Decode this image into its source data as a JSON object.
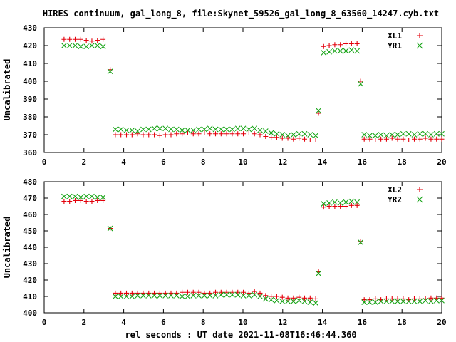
{
  "title": "HIRES continuum, gal_long_8, file:Skynet_59526_gal_long_8_63560_14247.cyb.txt",
  "xlabel": "rel seconds : UT date 2021-11-08T16:46:44.360",
  "colors": {
    "red": "#e3000b",
    "green": "#15a315"
  },
  "chart_data": [
    {
      "type": "scatter",
      "ylabel": "Uncalibrated",
      "xlim": [
        0,
        20
      ],
      "ylim": [
        360,
        430
      ],
      "xticks": [
        "0",
        "2",
        "4",
        "6",
        "8",
        "10",
        "12",
        "14",
        "16",
        "18",
        "20"
      ],
      "yticks": [
        "360",
        "370",
        "380",
        "390",
        "400",
        "410",
        "420",
        "430"
      ],
      "legend_position": "top-right",
      "series": [
        {
          "name": "XL1",
          "marker": "plus",
          "color": "#e3000b",
          "x": [
            1.0,
            1.28,
            1.56,
            1.84,
            2.12,
            2.4,
            2.68,
            2.96,
            3.32,
            3.58,
            3.86,
            4.14,
            4.42,
            4.7,
            4.98,
            5.26,
            5.54,
            5.82,
            6.1,
            6.38,
            6.66,
            6.94,
            7.22,
            7.5,
            7.78,
            8.06,
            8.34,
            8.62,
            8.9,
            9.18,
            9.46,
            9.74,
            10.02,
            10.3,
            10.58,
            10.86,
            11.14,
            11.42,
            11.7,
            11.98,
            12.26,
            12.54,
            12.82,
            13.1,
            13.38,
            13.66,
            13.8,
            14.06,
            14.34,
            14.62,
            14.9,
            15.18,
            15.46,
            15.74,
            15.92,
            16.1,
            16.38,
            16.66,
            16.94,
            17.22,
            17.5,
            17.78,
            18.06,
            18.34,
            18.62,
            18.9,
            19.18,
            19.46,
            19.74,
            20.0
          ],
          "y": [
            423.5,
            423.5,
            423.5,
            423.5,
            423.0,
            422.5,
            423.0,
            423.5,
            406.5,
            370.0,
            370.0,
            370.0,
            370.0,
            370.5,
            370.0,
            370.0,
            370.0,
            369.5,
            370.0,
            370.0,
            370.5,
            370.5,
            371.0,
            370.5,
            370.5,
            371.0,
            370.5,
            370.5,
            370.5,
            370.5,
            370.5,
            370.5,
            370.5,
            371.0,
            370.5,
            370.0,
            369.0,
            368.5,
            368.5,
            368.0,
            368.0,
            367.5,
            368.0,
            367.5,
            367.0,
            367.0,
            382.0,
            419.5,
            420.0,
            420.5,
            420.5,
            421.0,
            421.0,
            421.0,
            400.0,
            367.5,
            367.5,
            367.0,
            367.5,
            367.5,
            368.0,
            367.5,
            367.5,
            367.0,
            367.5,
            367.5,
            368.0,
            367.5,
            367.5,
            367.5
          ]
        },
        {
          "name": "YR1",
          "marker": "cross",
          "color": "#15a315",
          "x": [
            1.0,
            1.28,
            1.56,
            1.84,
            2.12,
            2.4,
            2.68,
            2.96,
            3.32,
            3.58,
            3.86,
            4.14,
            4.42,
            4.7,
            4.98,
            5.26,
            5.54,
            5.82,
            6.1,
            6.38,
            6.66,
            6.94,
            7.22,
            7.5,
            7.78,
            8.06,
            8.34,
            8.62,
            8.9,
            9.18,
            9.46,
            9.74,
            10.02,
            10.3,
            10.58,
            10.86,
            11.14,
            11.42,
            11.7,
            11.98,
            12.26,
            12.54,
            12.82,
            13.1,
            13.38,
            13.66,
            13.8,
            14.06,
            14.34,
            14.62,
            14.9,
            15.18,
            15.46,
            15.74,
            15.92,
            16.1,
            16.38,
            16.66,
            16.94,
            17.22,
            17.5,
            17.78,
            18.06,
            18.34,
            18.62,
            18.9,
            19.18,
            19.46,
            19.74,
            20.0
          ],
          "y": [
            420.0,
            420.0,
            420.0,
            419.5,
            419.5,
            420.0,
            420.0,
            419.5,
            405.5,
            373.0,
            373.0,
            372.5,
            372.5,
            372.0,
            373.0,
            373.0,
            373.5,
            373.5,
            373.5,
            373.0,
            373.0,
            372.5,
            372.5,
            372.5,
            373.0,
            373.0,
            373.5,
            373.0,
            373.0,
            373.0,
            373.0,
            373.5,
            373.5,
            373.0,
            373.5,
            372.5,
            372.0,
            371.0,
            370.5,
            370.0,
            369.5,
            370.0,
            370.5,
            370.5,
            370.0,
            369.5,
            383.5,
            416.0,
            416.5,
            417.0,
            417.0,
            417.0,
            417.5,
            417.0,
            398.5,
            370.0,
            369.5,
            369.5,
            370.0,
            369.5,
            370.0,
            370.0,
            370.5,
            370.5,
            370.0,
            370.5,
            370.5,
            370.0,
            370.5,
            370.5
          ]
        }
      ]
    },
    {
      "type": "scatter",
      "ylabel": "Uncalibrated",
      "xlim": [
        0,
        20
      ],
      "ylim": [
        400,
        480
      ],
      "xticks": [
        "0",
        "2",
        "4",
        "6",
        "8",
        "10",
        "12",
        "14",
        "16",
        "18",
        "20"
      ],
      "yticks": [
        "400",
        "410",
        "420",
        "430",
        "440",
        "450",
        "460",
        "470",
        "480"
      ],
      "legend_position": "top-right",
      "series": [
        {
          "name": "XL2",
          "marker": "plus",
          "color": "#e3000b",
          "x": [
            1.0,
            1.28,
            1.56,
            1.84,
            2.12,
            2.4,
            2.68,
            2.96,
            3.32,
            3.58,
            3.86,
            4.14,
            4.42,
            4.7,
            4.98,
            5.26,
            5.54,
            5.82,
            6.1,
            6.38,
            6.66,
            6.94,
            7.22,
            7.5,
            7.78,
            8.06,
            8.34,
            8.62,
            8.9,
            9.18,
            9.46,
            9.74,
            10.02,
            10.3,
            10.58,
            10.86,
            11.14,
            11.42,
            11.7,
            11.98,
            12.26,
            12.54,
            12.82,
            13.1,
            13.38,
            13.66,
            13.8,
            14.06,
            14.34,
            14.62,
            14.9,
            15.18,
            15.46,
            15.74,
            15.92,
            16.1,
            16.38,
            16.66,
            16.94,
            17.22,
            17.5,
            17.78,
            18.06,
            18.34,
            18.62,
            18.9,
            19.18,
            19.46,
            19.74,
            20.0
          ],
          "y": [
            468.0,
            468.0,
            468.5,
            468.5,
            468.0,
            468.0,
            468.5,
            468.5,
            451.5,
            412.0,
            412.0,
            412.0,
            412.0,
            412.0,
            412.0,
            412.0,
            412.0,
            412.0,
            412.0,
            412.0,
            412.0,
            412.5,
            412.5,
            412.5,
            412.5,
            412.0,
            412.0,
            412.5,
            412.5,
            412.5,
            412.5,
            412.5,
            412.5,
            412.0,
            413.0,
            412.0,
            410.5,
            410.0,
            410.0,
            409.5,
            409.0,
            409.0,
            409.5,
            409.0,
            409.0,
            408.5,
            425.0,
            464.5,
            465.0,
            465.0,
            465.0,
            465.0,
            465.5,
            465.5,
            443.5,
            408.0,
            408.0,
            408.5,
            408.0,
            408.5,
            408.5,
            408.5,
            408.5,
            408.0,
            408.5,
            408.5,
            408.5,
            409.0,
            409.0,
            409.0
          ]
        },
        {
          "name": "YR2",
          "marker": "cross",
          "color": "#15a315",
          "x": [
            1.0,
            1.28,
            1.56,
            1.84,
            2.12,
            2.4,
            2.68,
            2.96,
            3.32,
            3.58,
            3.86,
            4.14,
            4.42,
            4.7,
            4.98,
            5.26,
            5.54,
            5.82,
            6.1,
            6.38,
            6.66,
            6.94,
            7.22,
            7.5,
            7.78,
            8.06,
            8.34,
            8.62,
            8.9,
            9.18,
            9.46,
            9.74,
            10.02,
            10.3,
            10.58,
            10.86,
            11.14,
            11.42,
            11.7,
            11.98,
            12.26,
            12.54,
            12.82,
            13.1,
            13.38,
            13.66,
            13.8,
            14.06,
            14.34,
            14.62,
            14.9,
            15.18,
            15.46,
            15.74,
            15.92,
            16.1,
            16.38,
            16.66,
            16.94,
            17.22,
            17.5,
            17.78,
            18.06,
            18.34,
            18.62,
            18.9,
            19.18,
            19.46,
            19.74,
            20.0
          ],
          "y": [
            471.0,
            471.0,
            471.0,
            470.5,
            471.0,
            471.0,
            470.5,
            470.5,
            451.5,
            410.0,
            410.0,
            410.0,
            410.0,
            410.5,
            410.5,
            410.5,
            410.5,
            410.5,
            410.5,
            410.5,
            410.5,
            410.0,
            410.0,
            410.5,
            410.5,
            410.5,
            410.5,
            410.5,
            411.0,
            411.0,
            411.0,
            411.0,
            410.5,
            410.5,
            411.0,
            410.0,
            408.5,
            408.0,
            407.5,
            407.0,
            407.0,
            407.0,
            407.5,
            407.0,
            406.5,
            406.0,
            424.0,
            466.5,
            467.0,
            467.5,
            467.0,
            467.5,
            468.0,
            467.5,
            443.0,
            406.5,
            406.5,
            406.5,
            407.0,
            407.0,
            407.0,
            407.0,
            407.0,
            407.0,
            407.0,
            407.0,
            407.5,
            407.0,
            407.5,
            407.5
          ]
        }
      ]
    }
  ]
}
